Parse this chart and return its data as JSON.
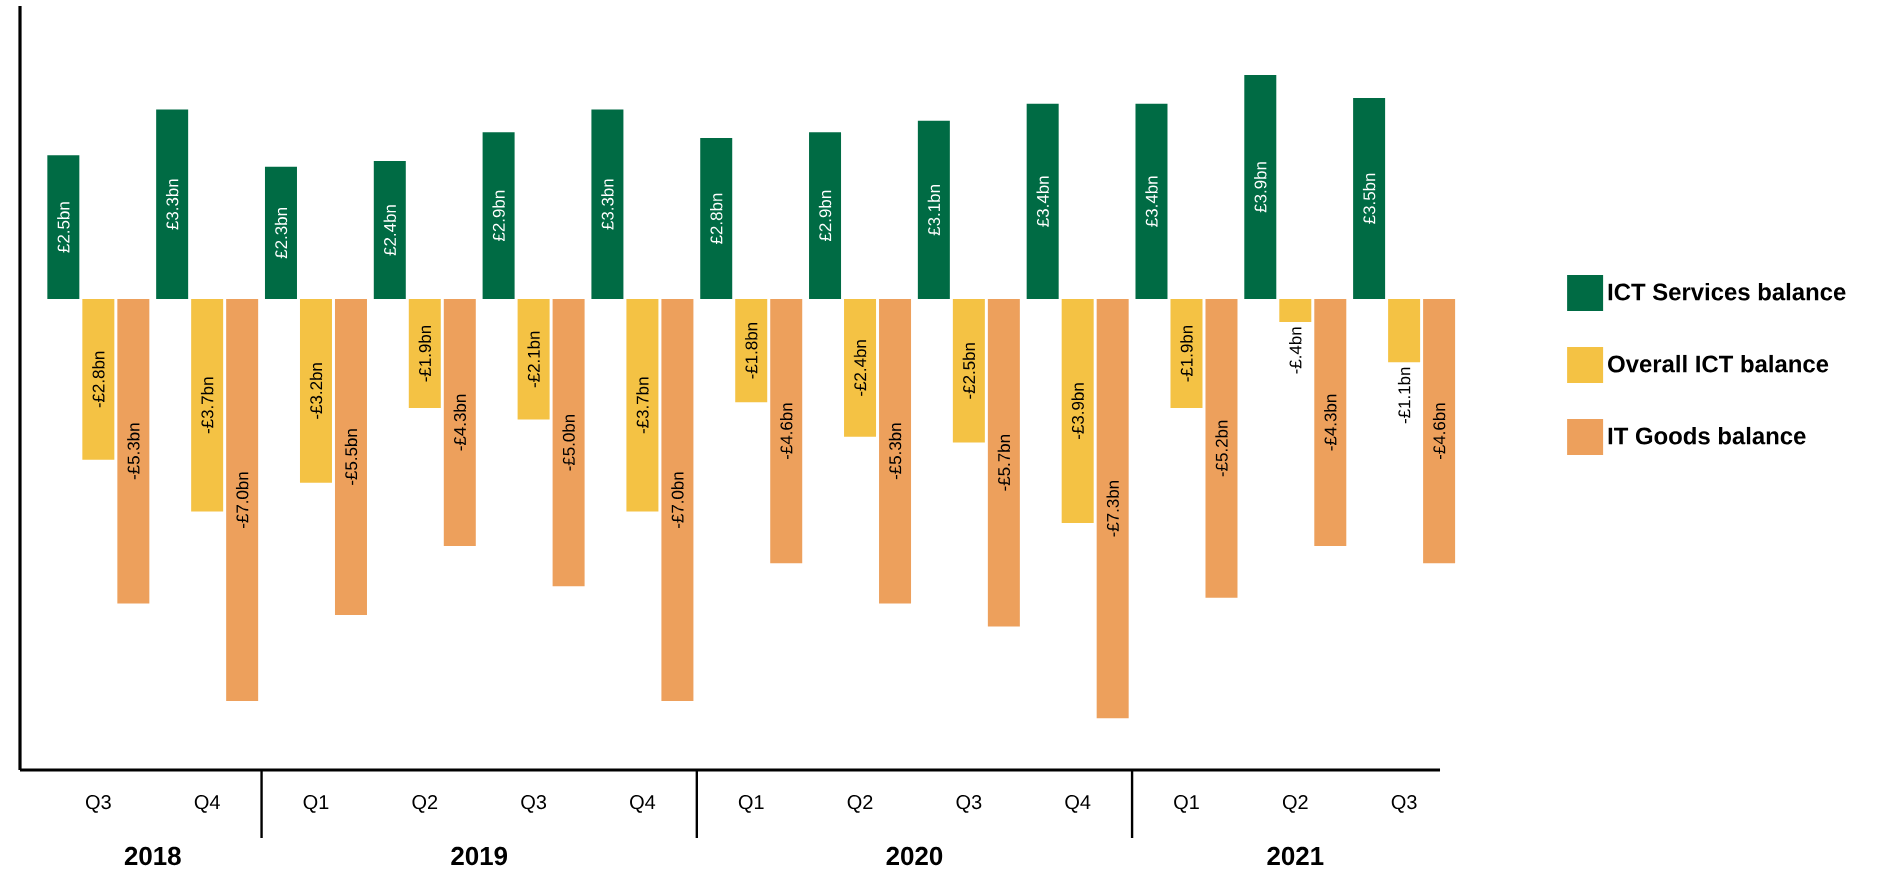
{
  "chart_data": {
    "type": "bar",
    "categories": [
      "Q3",
      "Q4",
      "Q1",
      "Q2",
      "Q3",
      "Q4",
      "Q1",
      "Q2",
      "Q3",
      "Q4",
      "Q1",
      "Q2",
      "Q3"
    ],
    "series": [
      {
        "name": "ICT Services balance",
        "color": "#006b44",
        "values": [
          2.5,
          3.3,
          2.3,
          2.4,
          2.9,
          3.3,
          2.8,
          2.9,
          3.1,
          3.4,
          3.4,
          3.9,
          3.5
        ],
        "value_labels": [
          "£2.5bn",
          "£3.3bn",
          "£2.3bn",
          "£2.4bn",
          "£2.9bn",
          "£3.3bn",
          "£2.8bn",
          "£2.9bn",
          "£3.1bn",
          "£3.4bn",
          "£3.4bn",
          "£3.9bn",
          "£3.5bn"
        ]
      },
      {
        "name": "Overall ICT balance",
        "color": "#f4c244",
        "values": [
          -2.8,
          -3.7,
          -3.2,
          -1.9,
          -2.1,
          -3.7,
          -1.8,
          -2.4,
          -2.5,
          -3.9,
          -1.9,
          -0.4,
          -1.1
        ],
        "value_labels": [
          "-£2.8bn",
          "-£3.7bn",
          "-£3.2bn",
          "-£1.9bn",
          "-£2.1bn",
          "-£3.7bn",
          "-£1.8bn",
          "-£2.4bn",
          "-£2.5bn",
          "-£3.9bn",
          "-£1.9bn",
          "-£.4bn",
          "-£1.1bn"
        ]
      },
      {
        "name": "IT Goods balance",
        "color": "#eda05c",
        "values": [
          -5.3,
          -7.0,
          -5.5,
          -4.3,
          -5.0,
          -7.0,
          -4.6,
          -5.3,
          -5.7,
          -7.3,
          -5.2,
          -4.3,
          -4.6
        ],
        "value_labels": [
          "-£5.3bn",
          "-£7.0bn",
          "-£5.5bn",
          "-£4.3bn",
          "-£5.0bn",
          "-£7.0bn",
          "-£4.6bn",
          "-£5.3bn",
          "-£5.7bn",
          "-£7.3bn",
          "-£5.2bn",
          "-£4.3bn",
          "-£4.6bn"
        ]
      }
    ],
    "ylim": [
      -8.2,
      5.1
    ],
    "tick_labels": "x",
    "legend": "right",
    "annotations": [
      "2018",
      "2019",
      "2020",
      "2021"
    ]
  }
}
